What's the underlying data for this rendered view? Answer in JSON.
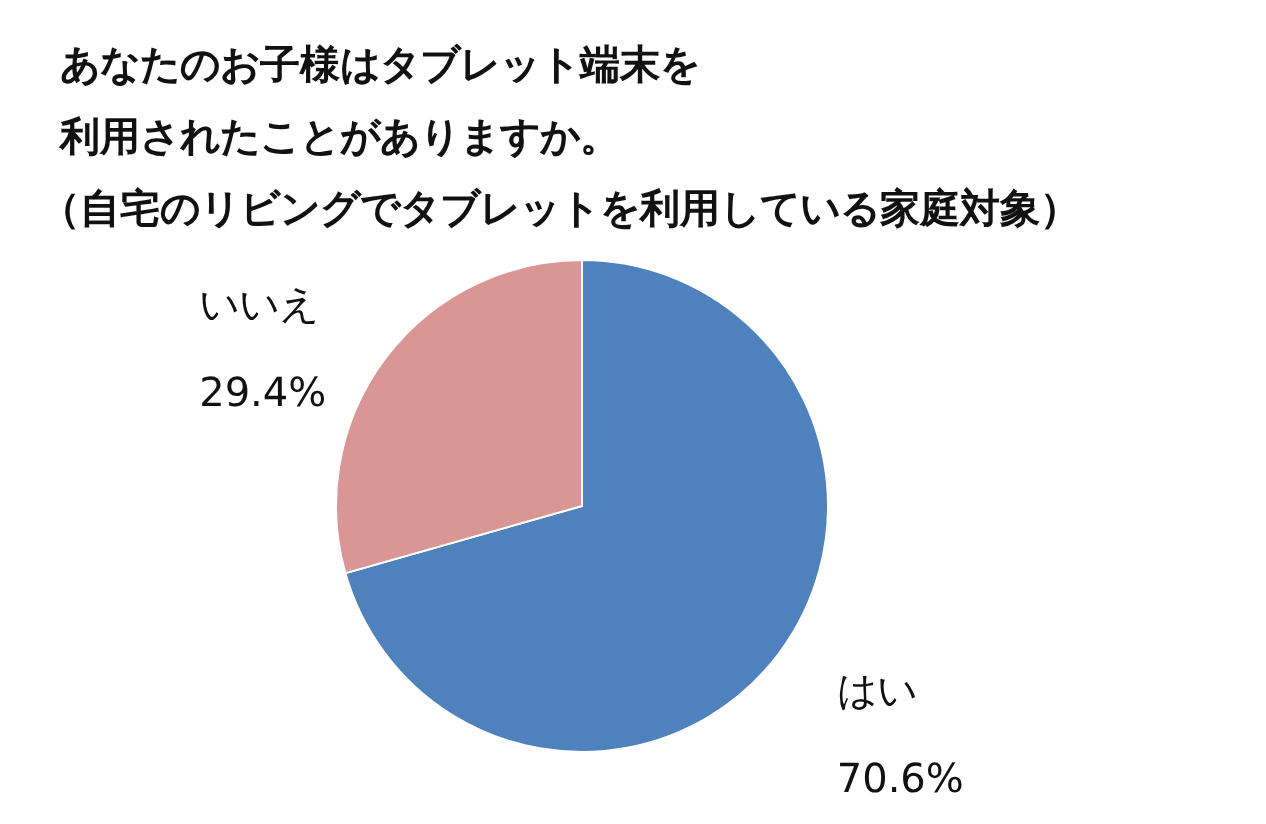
{
  "chart_data": {
    "type": "pie",
    "title": "あなたのお子様はタブレット端末を利用されたことがありますか。",
    "subtitle": "（自宅のリビングでタブレットを利用している家庭対象）",
    "categories": [
      "はい",
      "いいえ"
    ],
    "values": [
      70.6,
      29.4
    ],
    "colors": [
      "#4f81bd",
      "#d99694"
    ],
    "value_labels": [
      "70.6%",
      "29.4%"
    ]
  }
}
